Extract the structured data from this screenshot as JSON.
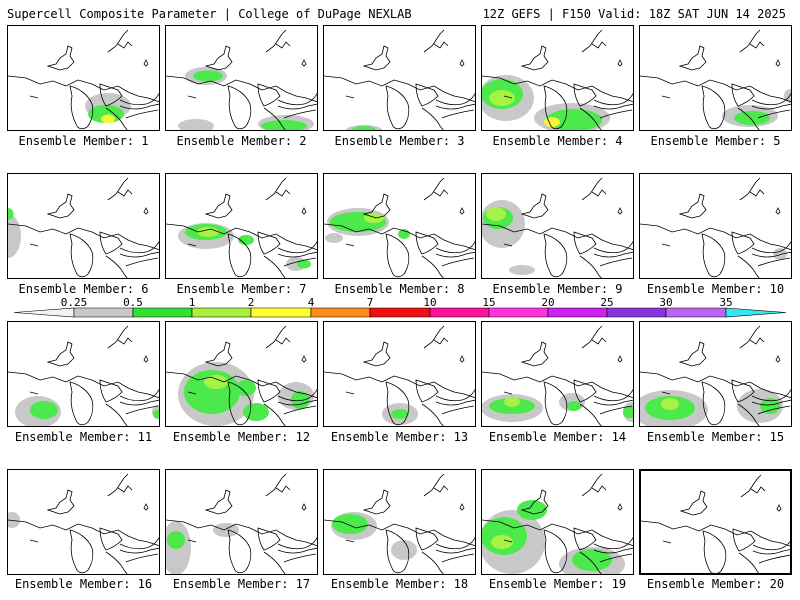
{
  "header": {
    "title": "Supercell Composite Parameter | College of DuPage NEXLAB",
    "run_info": "12Z GEFS | F150 Valid: 18Z SAT JUN 14 2025"
  },
  "colorbar": {
    "ticks": [
      "0.25",
      "0.5",
      "1",
      "2",
      "4",
      "7",
      "10",
      "15",
      "20",
      "25",
      "30",
      "35"
    ],
    "colors": [
      "#d0d0d0",
      "#c8c8c8",
      "#33e033",
      "#a8f040",
      "#ffff33",
      "#ff8c1a",
      "#ee1111",
      "#ff1199",
      "#ff33dd",
      "#cc22ee",
      "#8833dd",
      "#bb66ee",
      "#33e8ee"
    ]
  },
  "colors": {
    "light": "#c8c8c8",
    "green": "#4ce94c",
    "lime": "#a6f245",
    "yellow": "#f6f63a"
  },
  "members": [
    {
      "label": "Ensemble Member: 1",
      "blobs": []
    },
    {
      "label": "Ensemble Member: 2",
      "blobs": []
    },
    {
      "label": "Ensemble Member: 3",
      "blobs": []
    },
    {
      "label": "Ensemble Member: 4",
      "blobs": []
    },
    {
      "label": "Ensemble Member: 5",
      "blobs": []
    },
    {
      "label": "Ensemble Member: 6",
      "blobs": []
    },
    {
      "label": "Ensemble Member: 7",
      "blobs": []
    },
    {
      "label": "Ensemble Member: 8",
      "blobs": []
    },
    {
      "label": "Ensemble Member: 9",
      "blobs": []
    },
    {
      "label": "Ensemble Member: 10",
      "blobs": []
    },
    {
      "label": "Ensemble Member: 11",
      "blobs": []
    },
    {
      "label": "Ensemble Member: 12",
      "blobs": []
    },
    {
      "label": "Ensemble Member: 13",
      "blobs": []
    },
    {
      "label": "Ensemble Member: 14",
      "blobs": []
    },
    {
      "label": "Ensemble Member: 15",
      "blobs": []
    },
    {
      "label": "Ensemble Member: 16",
      "blobs": []
    },
    {
      "label": "Ensemble Member: 17",
      "blobs": []
    },
    {
      "label": "Ensemble Member: 18",
      "blobs": []
    },
    {
      "label": "Ensemble Member: 19",
      "blobs": []
    },
    {
      "label": "Ensemble Member: 20",
      "blobs": []
    }
  ]
}
